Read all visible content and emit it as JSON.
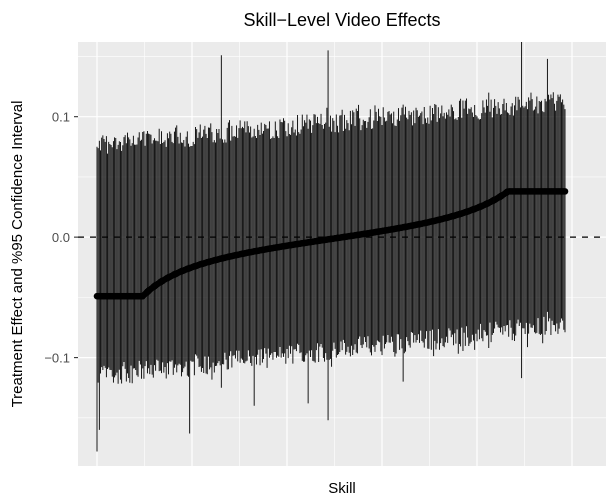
{
  "chart_data": {
    "type": "scatter",
    "title": "Skill−Level Video Effects",
    "xlabel": "Skill",
    "ylabel": "Treatment Effect and %95 Confidence Interval",
    "ylim": [
      -0.19,
      0.162
    ],
    "y_ticks": [
      {
        "value": 0.1,
        "label": "0.1"
      },
      {
        "value": 0.0,
        "label": "0.0"
      },
      {
        "value": -0.1,
        "label": "−0.1"
      }
    ],
    "reference_line": {
      "y": 0.0,
      "style": "dashed"
    },
    "n_skills": 400,
    "x_range": [
      1,
      400
    ],
    "x_tick_labels": [],
    "estimate_summary": {
      "min": -0.049,
      "max": 0.038
    },
    "ci_upper_summary": {
      "min": 0.075,
      "max": 0.162
    },
    "ci_lower_summary": {
      "min": -0.178,
      "max": -0.062
    },
    "series": [
      {
        "role": "estimate",
        "marker": "point",
        "color": "#000000"
      },
      {
        "role": "confidence_interval",
        "marker": "errorbar",
        "color": "#000000"
      }
    ],
    "grid": true,
    "legend": "none",
    "panel_background": "#ebebeb",
    "gridline_color": "#ffffff"
  }
}
